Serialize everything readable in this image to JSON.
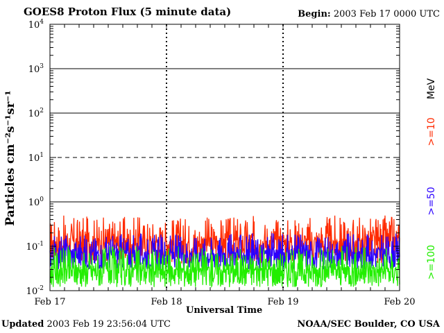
{
  "header": {
    "title": "GOES8 Proton Flux (5 minute data)",
    "begin_label": "Begin:",
    "begin_value": "2003 Feb 17 0000 UTC"
  },
  "footer": {
    "updated_label": "Updated",
    "updated_value": "2003 Feb 19 23:56:04 UTC",
    "source": "NOAA/SEC Boulder, CO USA"
  },
  "chart_data": {
    "type": "line",
    "xlabel": "Universal Time",
    "ylabel": "Particles cm⁻²s⁻¹sr⁻¹",
    "x_ticks": [
      "Feb 17",
      "Feb 18",
      "Feb 19",
      "Feb 20"
    ],
    "xlim": [
      "2003-02-17 00:00",
      "2003-02-20 00:00"
    ],
    "y_scale": "log",
    "ylim": [
      0.01,
      10000
    ],
    "y_ticks": [
      {
        "base": "10",
        "exp": "-2"
      },
      {
        "base": "10",
        "exp": "-1"
      },
      {
        "base": "10",
        "exp": "0"
      },
      {
        "base": "10",
        "exp": "1"
      },
      {
        "base": "10",
        "exp": "2"
      },
      {
        "base": "10",
        "exp": "3"
      },
      {
        "base": "10",
        "exp": "4"
      }
    ],
    "thresholds": [
      {
        "value": 1,
        "style": "solid"
      },
      {
        "value": 10,
        "style": "dashed"
      },
      {
        "value": 100,
        "style": "solid"
      },
      {
        "value": 1000,
        "style": "solid"
      }
    ],
    "unit_label": "MeV",
    "series": [
      {
        "name": ">=10",
        "color": "#ff2a00",
        "typical_range": [
          0.04,
          0.5
        ],
        "median": 0.13
      },
      {
        "name": ">=50",
        "color": "#2a00ff",
        "typical_range": [
          0.03,
          0.2
        ],
        "median": 0.07
      },
      {
        "name": ">=100",
        "color": "#22ee00",
        "typical_range": [
          0.012,
          0.1
        ],
        "median": 0.03
      }
    ]
  }
}
